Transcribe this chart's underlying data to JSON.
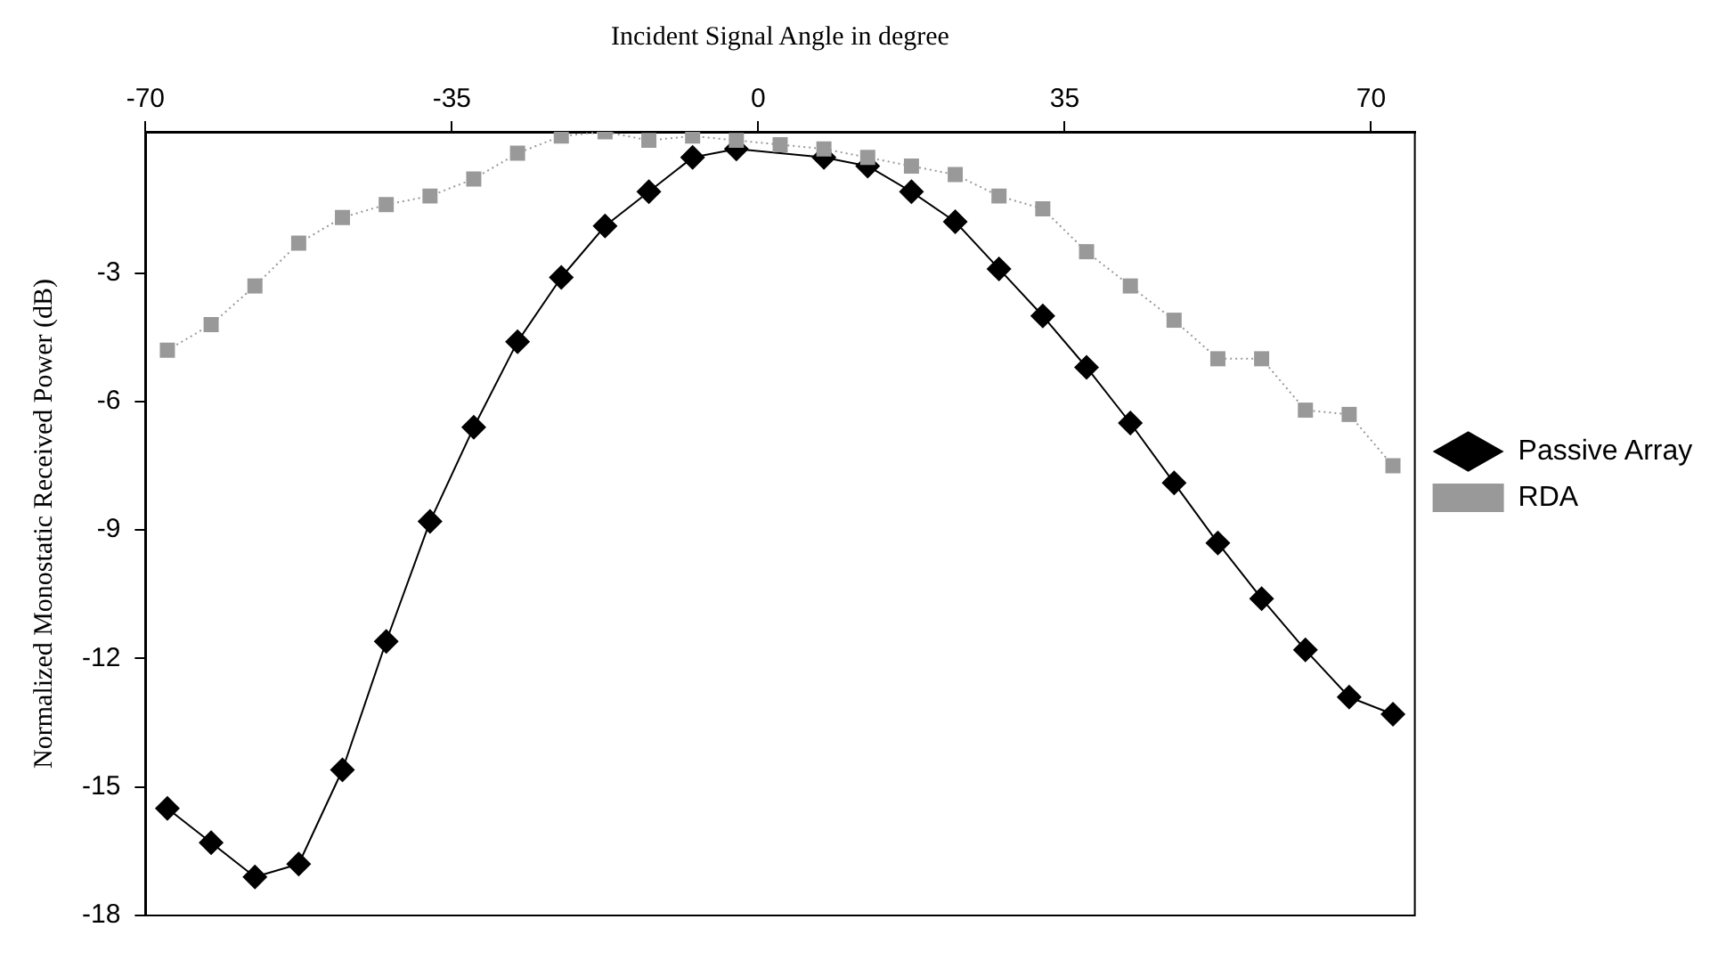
{
  "chart_data": {
    "type": "line",
    "xlabel": "Incident Signal Angle in degree",
    "ylabel": "Normalized Monostatic Received Power (dB)",
    "x": [
      -67.5,
      -62.5,
      -57.5,
      -52.5,
      -47.5,
      -42.5,
      -37.5,
      -32.5,
      -27.5,
      -22.5,
      -17.5,
      -12.5,
      -7.5,
      -2.5,
      2.5,
      7.5,
      12.5,
      17.5,
      22.5,
      27.5,
      32.5,
      37.5,
      42.5,
      47.5,
      52.5,
      57.5,
      62.5,
      67.5,
      72.5
    ],
    "series": [
      {
        "name": "Passive Array",
        "color": "#000000",
        "marker": "diamond",
        "line_style": "solid",
        "values": [
          -15.5,
          -16.3,
          -17.1,
          -16.8,
          -14.6,
          -11.6,
          -8.8,
          -6.6,
          -4.6,
          -3.1,
          -1.9,
          -1.1,
          -0.3,
          -0.1,
          null,
          -0.3,
          -0.5,
          -1.1,
          -1.8,
          -2.9,
          -4.0,
          -5.2,
          -6.5,
          -7.9,
          -9.3,
          -10.6,
          -11.8,
          -12.9,
          -13.3
        ]
      },
      {
        "name": "RDA",
        "color": "#999999",
        "marker": "square",
        "line_style": "dotted",
        "values": [
          -4.8,
          -4.2,
          -3.3,
          -2.3,
          -1.7,
          -1.4,
          -1.2,
          -0.8,
          -0.2,
          0.2,
          0.3,
          0.1,
          0.2,
          0.1,
          0,
          -0.1,
          -0.3,
          -0.5,
          -0.7,
          -1.2,
          -1.5,
          -2.5,
          -3.3,
          -4.1,
          -5.0,
          -5.0,
          -6.2,
          -6.3,
          -7.5
        ]
      }
    ],
    "xlim": [
      -70,
      75
    ],
    "xticks": [
      -70,
      -35,
      0,
      35,
      70
    ],
    "ylim": [
      -18,
      0.3
    ],
    "yticks": [
      -18,
      -15,
      -12,
      -9,
      -6,
      -3
    ],
    "grid": false,
    "legend": "right"
  }
}
